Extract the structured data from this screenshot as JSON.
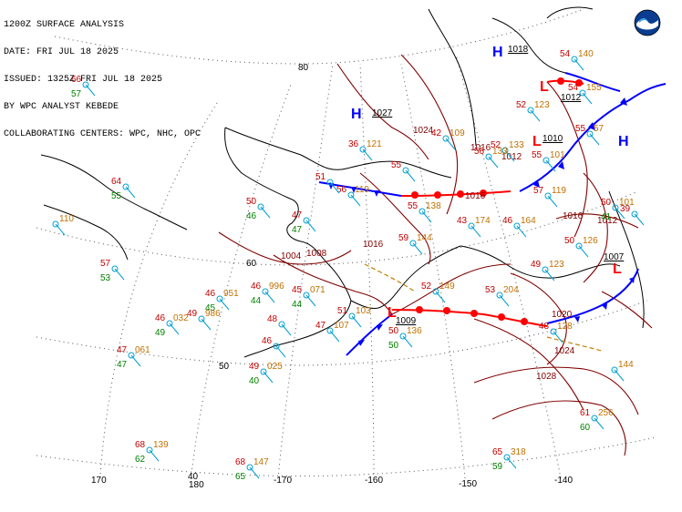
{
  "header": {
    "line1": "1200Z SURFACE ANALYSIS",
    "line2": "DATE: FRI JUL 18 2025",
    "line3": "ISSUED: 1325Z FRI JUL 18 2025",
    "line4": "BY WPC ANALYST KEBEDE",
    "line5": "COLLABORATING CENTERS: WPC, NHC, OPC"
  },
  "logo": {
    "icon": "noaa-logo",
    "text": "NOAA"
  },
  "colors": {
    "temp": "#c00000",
    "dewpoint": "#008000",
    "pressure_change": "#c07000",
    "station": "#00a0d0",
    "isobar": "#800000",
    "cold_front": "#0000ff",
    "warm_front": "#ff0000",
    "high": "#0000ff",
    "low": "#ff0000",
    "trough": "#b08000"
  },
  "pressure_centers": [
    {
      "type": "H",
      "value": "1027"
    },
    {
      "type": "H",
      "value": "1018"
    },
    {
      "type": "H",
      "value": ""
    },
    {
      "type": "L",
      "value": "1012"
    },
    {
      "type": "L",
      "value": "1010"
    },
    {
      "type": "L",
      "value": "1009"
    },
    {
      "type": "L",
      "value": "1007"
    }
  ],
  "isobar_labels": [
    "1024",
    "1016",
    "1016",
    "1012",
    "1016",
    "1012",
    "1008",
    "1004",
    "1020",
    "1024",
    "1028",
    "1016"
  ],
  "grid_labels": {
    "lat": [
      "80",
      "60",
      "50",
      "40"
    ],
    "lon": [
      "170",
      "180",
      "-170",
      "-160",
      "-150",
      "-140"
    ]
  },
  "stations": [
    {
      "t": "66",
      "d": "57",
      "p": ""
    },
    {
      "t": "64",
      "d": "55",
      "p": ""
    },
    {
      "t": "",
      "d": "",
      "p": "110"
    },
    {
      "t": "57",
      "d": "53",
      "p": ""
    },
    {
      "t": "46",
      "d": "49",
      "p": "032"
    },
    {
      "t": "47",
      "d": "47",
      "p": "061"
    },
    {
      "t": "46",
      "d": "45",
      "p": "951"
    },
    {
      "t": "49",
      "d": "",
      "p": "986"
    },
    {
      "t": "46",
      "d": "44",
      "p": "996"
    },
    {
      "t": "45",
      "d": "44",
      "p": "071"
    },
    {
      "t": "48",
      "d": "",
      "p": ""
    },
    {
      "t": "46",
      "d": "",
      "p": ""
    },
    {
      "t": "49",
      "d": "40",
      "p": "025"
    },
    {
      "t": "68",
      "d": "62",
      "p": "139"
    },
    {
      "t": "68",
      "d": "65",
      "p": "147"
    },
    {
      "t": "50",
      "d": "46",
      "p": ""
    },
    {
      "t": "47",
      "d": "47",
      "p": ""
    },
    {
      "t": "51",
      "d": "",
      "p": "103"
    },
    {
      "t": "47",
      "d": "",
      "p": "107"
    },
    {
      "t": "50",
      "d": "50",
      "p": "136"
    },
    {
      "t": "52",
      "d": "",
      "p": "149"
    },
    {
      "t": "53",
      "d": "",
      "p": "204"
    },
    {
      "t": "59",
      "d": "",
      "p": "144"
    },
    {
      "t": "55",
      "d": "",
      "p": "138"
    },
    {
      "t": "43",
      "d": "",
      "p": "174"
    },
    {
      "t": "46",
      "d": "",
      "p": "164"
    },
    {
      "t": "57",
      "d": "",
      "p": "119"
    },
    {
      "t": "50",
      "d": "",
      "p": "126"
    },
    {
      "t": "49",
      "d": "",
      "p": "123"
    },
    {
      "t": "48",
      "d": "",
      "p": "128"
    },
    {
      "t": "50",
      "d": "41",
      "p": "101"
    },
    {
      "t": "39",
      "d": "",
      "p": ""
    },
    {
      "t": "55",
      "d": "",
      "p": "101"
    },
    {
      "t": "52",
      "d": "",
      "p": "123"
    },
    {
      "t": "54",
      "d": "",
      "p": "155"
    },
    {
      "t": "54",
      "d": "",
      "p": "140"
    },
    {
      "t": "55",
      "d": "",
      "p": "57"
    },
    {
      "t": "52",
      "d": "",
      "p": "133"
    },
    {
      "t": "56",
      "d": "",
      "p": "119"
    },
    {
      "t": "56",
      "d": "",
      "p": "133"
    },
    {
      "t": "55",
      "d": "",
      "p": ""
    },
    {
      "t": "51",
      "d": "",
      "p": ""
    },
    {
      "t": "36",
      "d": "",
      "p": "121"
    },
    {
      "t": "42",
      "d": "",
      "p": "109"
    },
    {
      "t": "61",
      "d": "60",
      "p": "256"
    },
    {
      "t": "65",
      "d": "59",
      "p": "318"
    },
    {
      "t": "",
      "d": "",
      "p": "144"
    }
  ]
}
